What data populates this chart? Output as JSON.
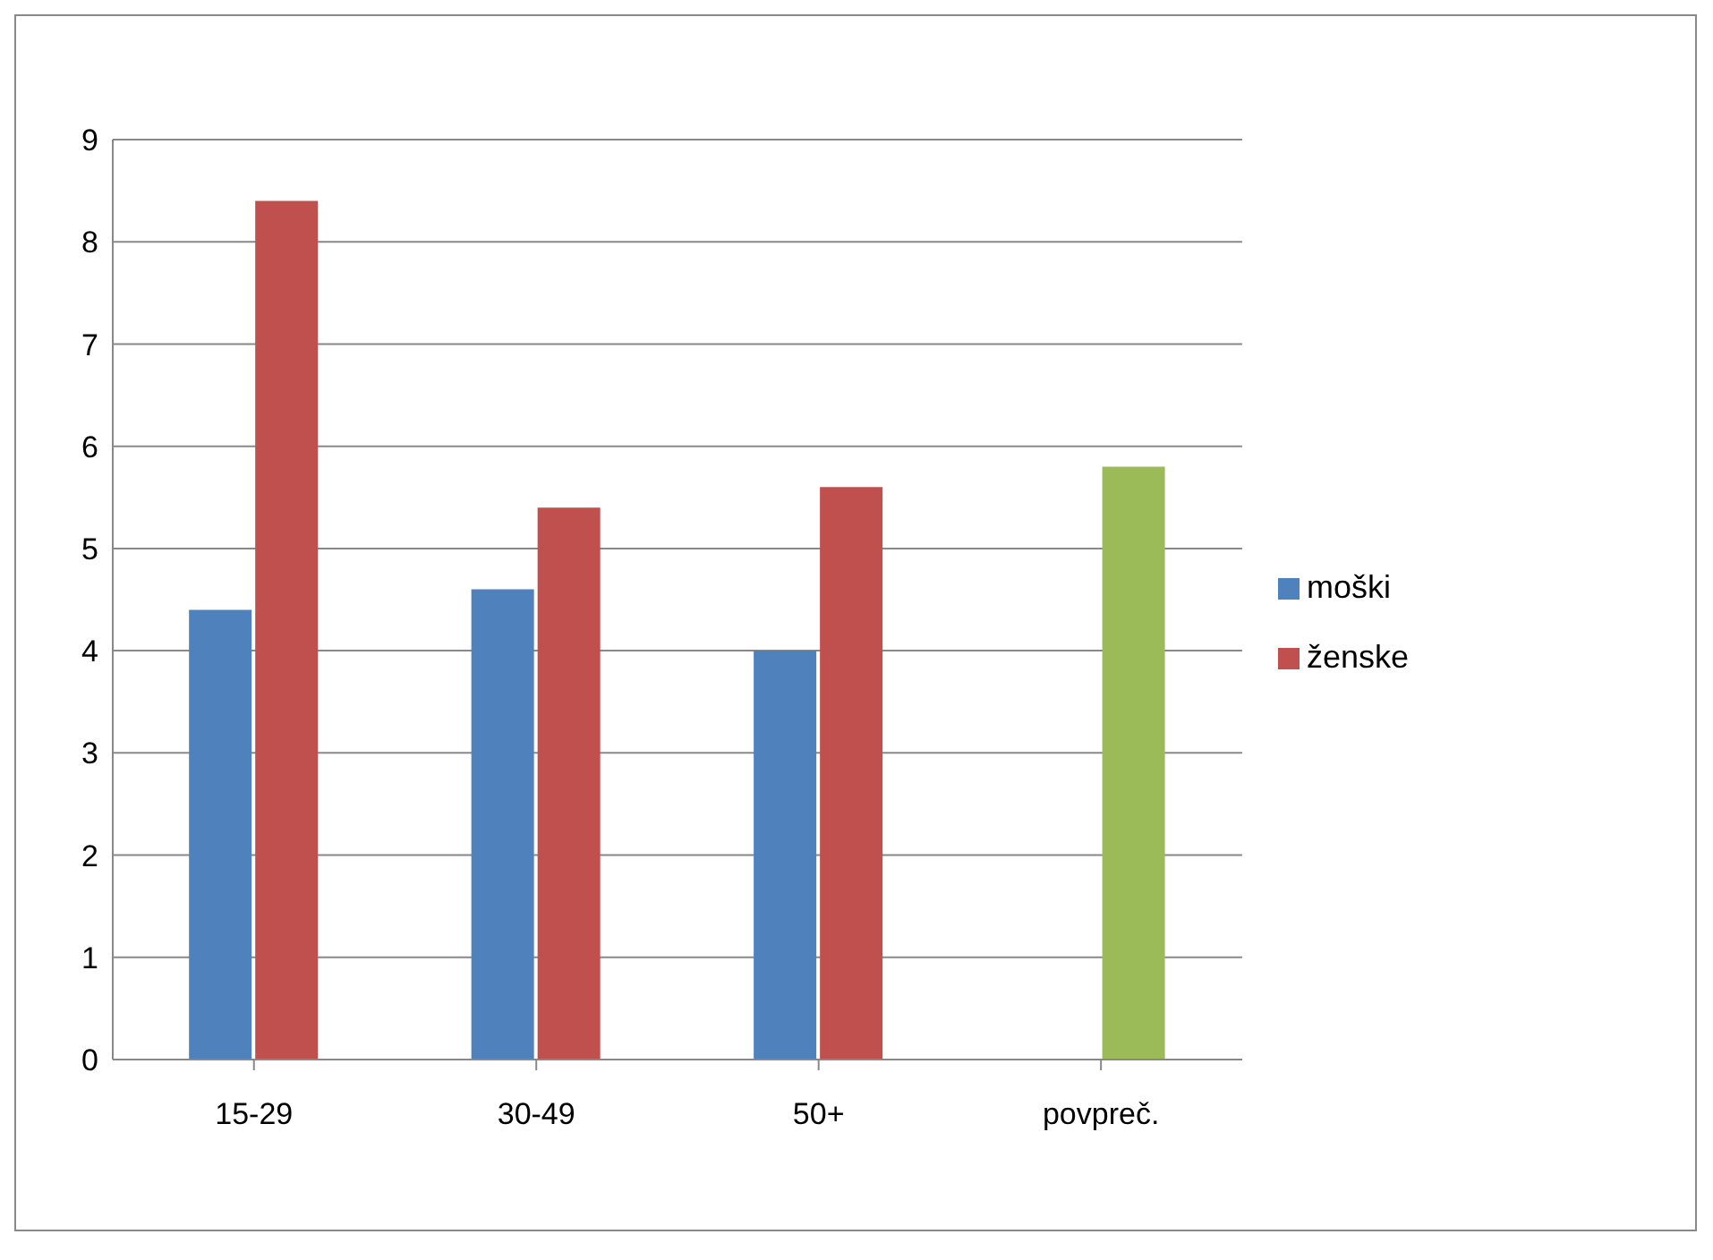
{
  "chart_data": {
    "type": "bar",
    "categories": [
      "15-29",
      "30-49",
      "50+",
      "povpreč."
    ],
    "series": [
      {
        "name": "moški",
        "color": "#4f81bd",
        "values": [
          4.4,
          4.6,
          4.0,
          null
        ]
      },
      {
        "name": "ženske",
        "color": "#c0504d",
        "colors": [
          "#c0504d",
          "#c0504d",
          "#c0504d",
          "#9bbb59"
        ],
        "values": [
          8.4,
          5.4,
          5.6,
          5.8
        ]
      }
    ],
    "ylim": [
      0,
      9
    ],
    "yticks": [
      0,
      1,
      2,
      3,
      4,
      5,
      6,
      7,
      8,
      9
    ],
    "grid": "y",
    "legend": "right"
  }
}
